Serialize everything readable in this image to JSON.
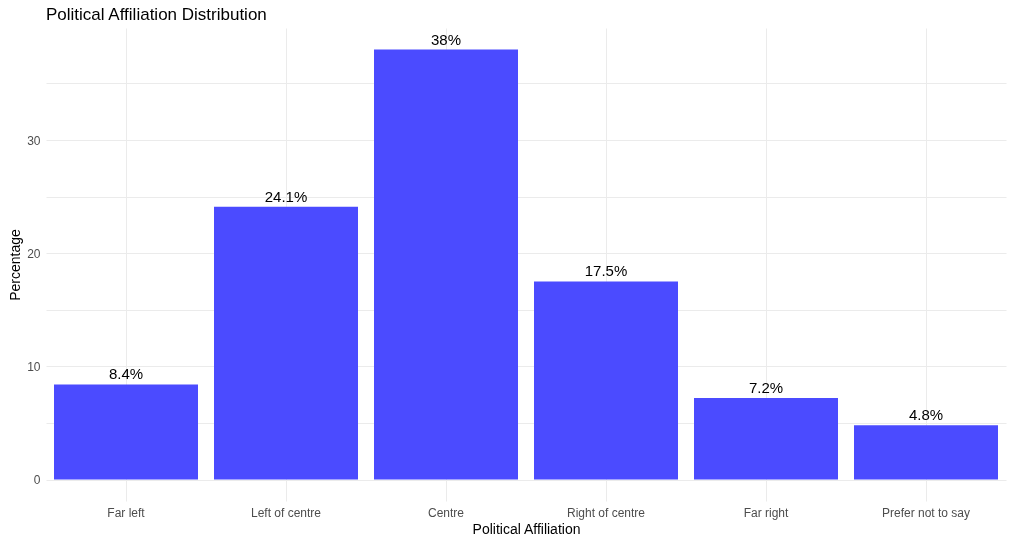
{
  "chart_data": {
    "type": "bar",
    "title": "Political Affiliation Distribution",
    "xlabel": "Political Affiliation",
    "ylabel": "Percentage",
    "categories": [
      "Far left",
      "Left of centre",
      "Centre",
      "Right of centre",
      "Far right",
      "Prefer not to say"
    ],
    "values": [
      8.4,
      24.1,
      38,
      17.5,
      7.2,
      4.8
    ],
    "value_labels": [
      "8.4%",
      "24.1%",
      "38%",
      "17.5%",
      "7.2%",
      "4.8%"
    ],
    "color": "#4b4bff",
    "ylim": [
      -1.9,
      39.9
    ],
    "yticks": [
      0,
      {
        "value": 5,
        "label": null
      },
      10,
      {
        "value": 15,
        "label": null
      },
      20,
      {
        "value": 25,
        "label": null
      },
      30,
      {
        "value": 35,
        "label": null
      }
    ],
    "grid": true
  }
}
